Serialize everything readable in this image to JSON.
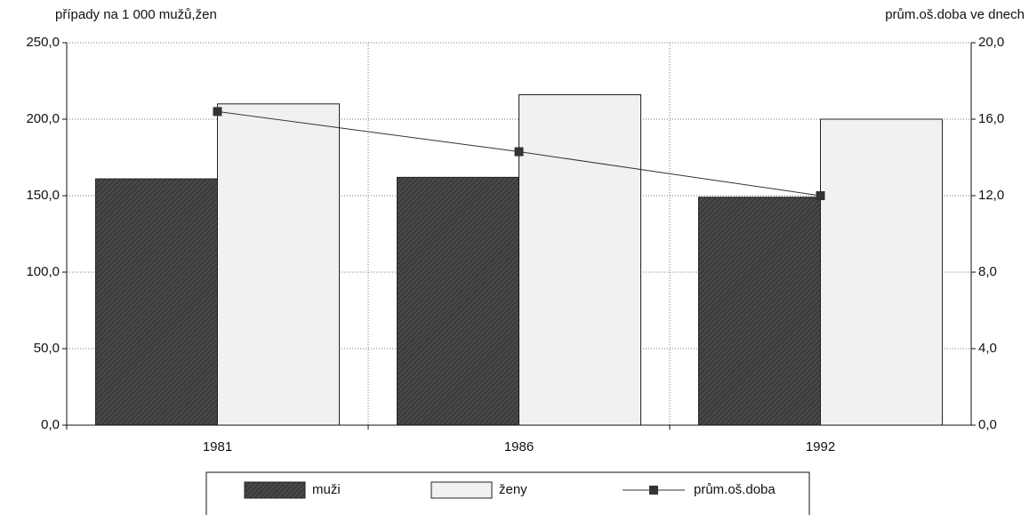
{
  "chart_data": {
    "type": "bar",
    "y_label": "případy na 1 000 mužů,žen",
    "y2_label": "prům.oš.doba ve dnech",
    "categories": [
      "1981",
      "1986",
      "1992"
    ],
    "series": [
      {
        "name": "muži",
        "color": "#3c3c3c",
        "values": [
          161,
          162,
          149
        ]
      },
      {
        "name": "ženy",
        "color": "#f1f1f1",
        "values": [
          210,
          216,
          200
        ]
      },
      {
        "name": "prům.oš.doba",
        "type": "line",
        "axis": "y2",
        "color": "#333333",
        "values": [
          16.4,
          14.3,
          12.0
        ]
      }
    ],
    "ylim": [
      0,
      250
    ],
    "yticks": [
      {
        "value": 0,
        "label": "0,0"
      },
      {
        "value": 50,
        "label": "50,0"
      },
      {
        "value": 100,
        "label": "100,0"
      },
      {
        "value": 150,
        "label": "150,0"
      },
      {
        "value": 200,
        "label": "200,0"
      },
      {
        "value": 250,
        "label": "250,0"
      }
    ],
    "y2lim": [
      0,
      20
    ],
    "y2ticks": [
      {
        "value": 0,
        "label": "0,0"
      },
      {
        "value": 4,
        "label": "4,0"
      },
      {
        "value": 8,
        "label": "8,0"
      },
      {
        "value": 12,
        "label": "12,0"
      },
      {
        "value": 16,
        "label": "16,0"
      },
      {
        "value": 20,
        "label": "20,0"
      }
    ],
    "grid": true,
    "legend": "bottom"
  }
}
